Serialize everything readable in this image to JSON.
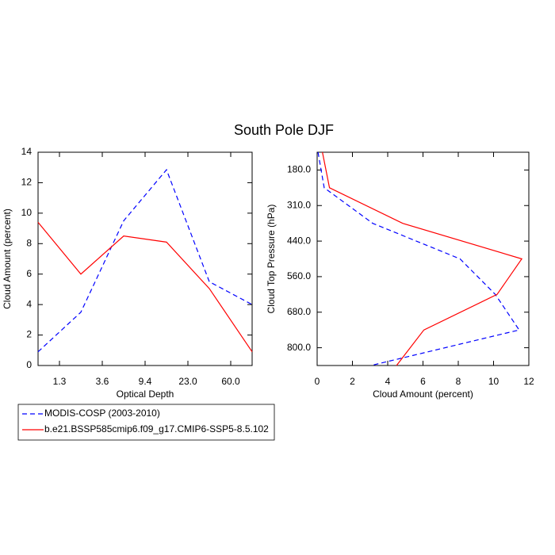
{
  "title": "South Pole DJF",
  "chart_data": [
    {
      "type": "line",
      "orientation": "vertical",
      "x_label": "Optical Depth",
      "y_label": "Cloud Amount (percent)",
      "x": [
        0,
        1,
        2,
        3,
        4,
        5
      ],
      "xlim": [
        0,
        5
      ],
      "xticks": [
        {
          "value": 0.5,
          "label": "1.3"
        },
        {
          "value": 1.5,
          "label": "3.6"
        },
        {
          "value": 2.5,
          "label": "9.4"
        },
        {
          "value": 3.5,
          "label": "23.0"
        },
        {
          "value": 4.5,
          "label": "60.0"
        }
      ],
      "ylim": [
        0,
        14
      ],
      "yticks": [
        0,
        2,
        4,
        6,
        8,
        10,
        12,
        14
      ],
      "legend": "below",
      "series": [
        {
          "name": "MODIS-COSP (2003-2010)",
          "color": "#0000ff",
          "style": "dashed",
          "values": [
            0.9,
            3.5,
            9.5,
            12.85,
            5.5,
            4.0
          ]
        },
        {
          "name": "b.e21.BSSP585cmip6.f09_g17.CMIP6-SSP5-8.5.102",
          "color": "#ff0000",
          "style": "solid",
          "values": [
            9.4,
            6.0,
            8.5,
            8.1,
            5.05,
            0.9
          ]
        }
      ]
    },
    {
      "type": "line",
      "orientation": "horizontal",
      "x_label": "Cloud Amount (percent)",
      "y_label": "Cloud Top Pressure (hPa)",
      "y": [
        0,
        1,
        2,
        3,
        4,
        5,
        6
      ],
      "ylim": [
        6,
        0
      ],
      "yticks": [
        {
          "value": 0.5,
          "label": "180.0"
        },
        {
          "value": 1.5,
          "label": "310.0"
        },
        {
          "value": 2.5,
          "label": "440.0"
        },
        {
          "value": 3.5,
          "label": "560.0"
        },
        {
          "value": 4.5,
          "label": "680.0"
        },
        {
          "value": 5.5,
          "label": "800.0"
        }
      ],
      "xlim": [
        0,
        12
      ],
      "xticks": [
        0,
        2,
        4,
        6,
        8,
        10,
        12
      ],
      "series": [
        {
          "color": "#0000ff",
          "style": "dashed",
          "values": [
            0.05,
            0.4,
            3.15,
            8.1,
            10.1,
            11.45,
            3.05
          ]
        },
        {
          "color": "#ff0000",
          "style": "solid",
          "values": [
            0.3,
            0.7,
            4.85,
            11.6,
            10.2,
            6.05,
            4.5
          ]
        }
      ]
    }
  ]
}
